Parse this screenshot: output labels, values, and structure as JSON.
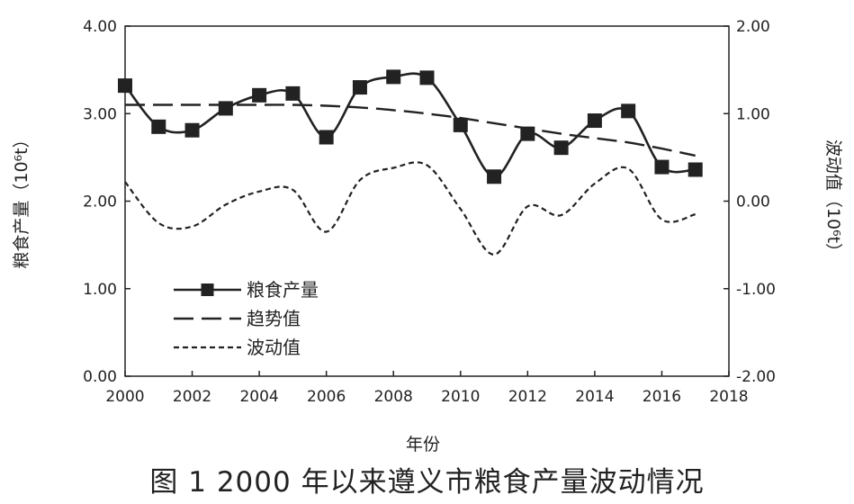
{
  "caption": "图 1   2000 年以来遵义市粮食产量波动情况",
  "chart_data": {
    "type": "line",
    "xlabel": "年份",
    "ylabel": "粮食产量（10⁶t）",
    "y2label": "波动值（10⁶t）",
    "xlim": [
      2000,
      2018
    ],
    "ylim": [
      0,
      4
    ],
    "y2lim": [
      -2,
      2
    ],
    "x_ticks": [
      "2000",
      "2002",
      "2004",
      "2006",
      "2008",
      "2010",
      "2012",
      "2014",
      "2016",
      "2018"
    ],
    "y_ticks": [
      "0.00",
      "1.00",
      "2.00",
      "3.00",
      "4.00"
    ],
    "y2_ticks": [
      "-2.00",
      "-1.00",
      "0.00",
      "1.00",
      "2.00"
    ],
    "grid": false,
    "legend_position": "lower-left",
    "x": [
      2000,
      2001,
      2002,
      2003,
      2004,
      2005,
      2006,
      2007,
      2008,
      2009,
      2010,
      2011,
      2012,
      2013,
      2014,
      2015,
      2016,
      2017
    ],
    "series": [
      {
        "name": "粮食产量",
        "axis": "left",
        "style": "solid-square-markers",
        "values": [
          3.32,
          2.85,
          2.81,
          3.06,
          3.21,
          3.23,
          2.73,
          3.3,
          3.42,
          3.41,
          2.87,
          2.28,
          2.77,
          2.61,
          2.92,
          3.03,
          2.39,
          2.36
        ]
      },
      {
        "name": "趋势值",
        "axis": "left",
        "style": "long-dash",
        "values": [
          3.1,
          3.1,
          3.1,
          3.1,
          3.1,
          3.1,
          3.09,
          3.07,
          3.04,
          3.0,
          2.95,
          2.89,
          2.83,
          2.77,
          2.72,
          2.67,
          2.6,
          2.52
        ]
      },
      {
        "name": "波动值",
        "axis": "right",
        "style": "short-dash",
        "values": [
          0.22,
          -0.25,
          -0.29,
          -0.04,
          0.11,
          0.13,
          -0.35,
          0.24,
          0.38,
          0.41,
          -0.09,
          -0.61,
          -0.06,
          -0.16,
          0.2,
          0.37,
          -0.21,
          -0.15
        ]
      }
    ]
  }
}
